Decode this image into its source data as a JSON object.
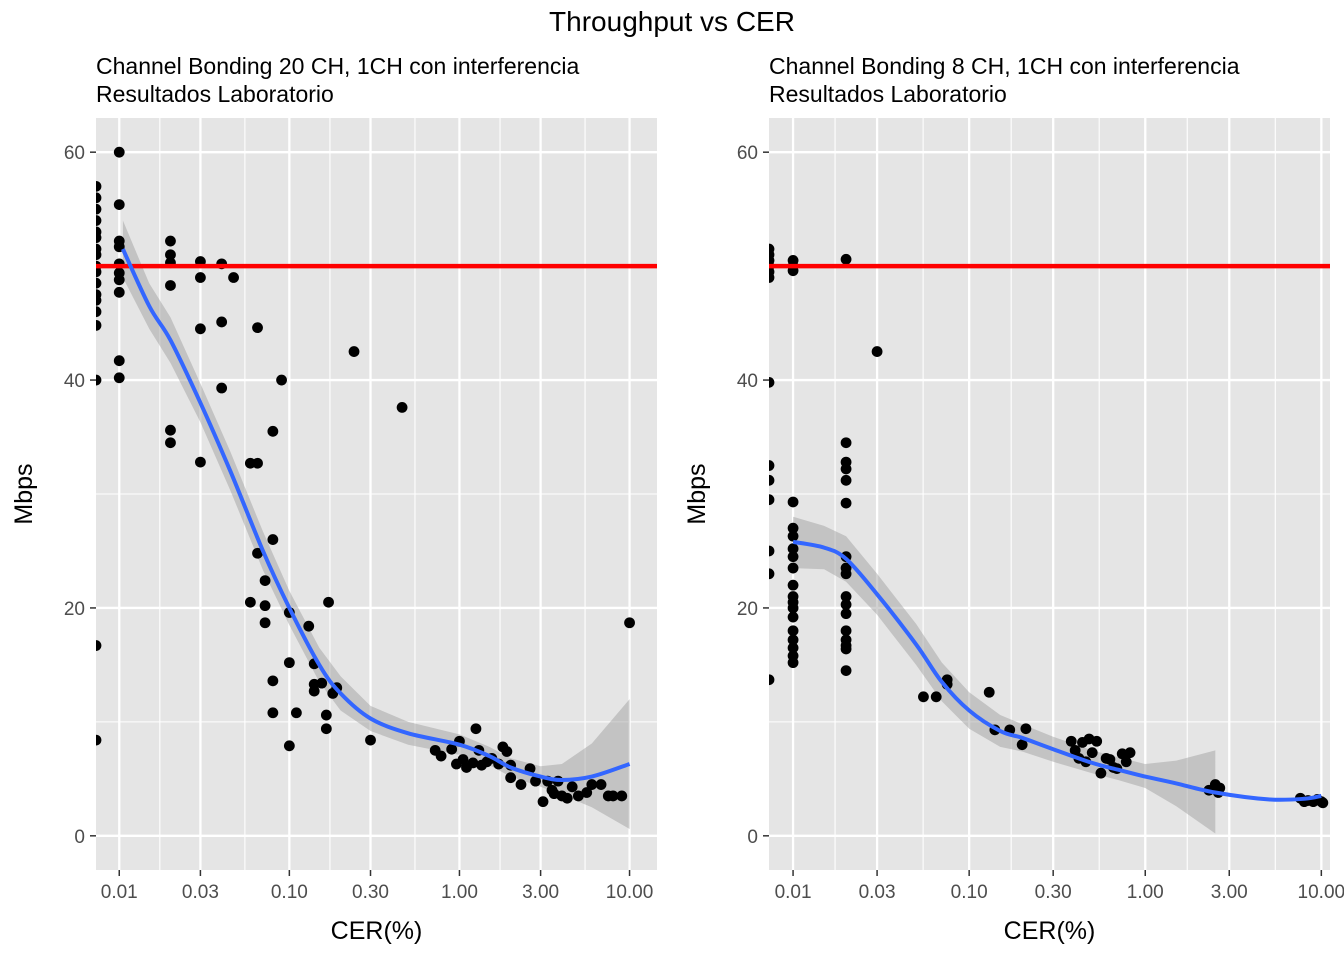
{
  "figure": {
    "title": "Throughput vs CER"
  },
  "colors": {
    "panel_bg": "#e5e5e5",
    "grid": "#ffffff",
    "points": "#000000",
    "smooth": "#3366ff",
    "ribbon": "#999999",
    "reference": "#ff0000"
  },
  "chart_data": [
    {
      "type": "scatter",
      "title": "Channel Bonding 20 CH, 1CH con interferencia",
      "subtitle": "Resultados Laboratorio",
      "xlabel": "CER(%)",
      "ylabel": "Mbps",
      "x_scale": "log10",
      "xlim": [
        0.0073,
        14.5
      ],
      "ylim": [
        -3,
        63
      ],
      "x_ticks": [
        0.01,
        0.03,
        0.1,
        0.3,
        1,
        3,
        10
      ],
      "x_tick_labels": [
        "0.01",
        "0.03",
        "0.10",
        "0.30",
        "1.00",
        "3.00",
        "10.00"
      ],
      "y_ticks": [
        0,
        20,
        40,
        60
      ],
      "y_tick_labels": [
        "0",
        "20",
        "40",
        "60"
      ],
      "reference_line": {
        "y": 50
      },
      "smooth": {
        "x": [
          0.0105,
          0.015,
          0.02,
          0.03,
          0.045,
          0.07,
          0.1,
          0.15,
          0.2,
          0.3,
          0.5,
          1,
          1.5,
          2,
          3,
          4,
          6,
          10
        ],
        "y": [
          51.5,
          46.5,
          43.5,
          38,
          32,
          25,
          20,
          15,
          12.5,
          10.3,
          9,
          8,
          7,
          6,
          5.2,
          4.9,
          5.2,
          6.3
        ],
        "lower": [
          49,
          44.5,
          41.5,
          36.3,
          30.3,
          23.3,
          18.5,
          13.5,
          11,
          9.2,
          8,
          7.1,
          6.2,
          5.2,
          4.3,
          3.6,
          2.5,
          0.6
        ],
        "upper": [
          54,
          48.5,
          45.5,
          39.7,
          33.7,
          26.7,
          21.5,
          16.5,
          14,
          11.4,
          10,
          8.9,
          7.8,
          6.8,
          6.1,
          6.3,
          8.1,
          12
        ]
      },
      "points": [
        [
          0.0073,
          57
        ],
        [
          0.0073,
          56
        ],
        [
          0.0073,
          55
        ],
        [
          0.0073,
          54
        ],
        [
          0.0073,
          53
        ],
        [
          0.0073,
          52.5
        ],
        [
          0.0073,
          51.5
        ],
        [
          0.0073,
          51
        ],
        [
          0.0073,
          50
        ],
        [
          0.0073,
          49.5
        ],
        [
          0.0073,
          48.5
        ],
        [
          0.0073,
          47.5
        ],
        [
          0.0073,
          47
        ],
        [
          0.0073,
          46
        ],
        [
          0.0073,
          44.8
        ],
        [
          0.0073,
          40
        ],
        [
          0.0073,
          16.7
        ],
        [
          0.0073,
          8.4
        ],
        [
          0.01,
          60
        ],
        [
          0.01,
          55.4
        ],
        [
          0.01,
          52.2
        ],
        [
          0.01,
          51.7
        ],
        [
          0.01,
          50.2
        ],
        [
          0.01,
          49.4
        ],
        [
          0.01,
          48.8
        ],
        [
          0.01,
          47.7
        ],
        [
          0.01,
          41.7
        ],
        [
          0.01,
          40.2
        ],
        [
          0.02,
          52.2
        ],
        [
          0.02,
          51
        ],
        [
          0.02,
          50.3
        ],
        [
          0.02,
          48.3
        ],
        [
          0.02,
          35.6
        ],
        [
          0.02,
          34.5
        ],
        [
          0.03,
          50.4
        ],
        [
          0.03,
          49
        ],
        [
          0.03,
          44.5
        ],
        [
          0.03,
          32.8
        ],
        [
          0.04,
          50.2
        ],
        [
          0.04,
          45.1
        ],
        [
          0.04,
          39.3
        ],
        [
          0.047,
          49
        ],
        [
          0.059,
          32.7
        ],
        [
          0.059,
          20.5
        ],
        [
          0.065,
          44.6
        ],
        [
          0.065,
          32.7
        ],
        [
          0.065,
          24.8
        ],
        [
          0.072,
          22.4
        ],
        [
          0.072,
          20.2
        ],
        [
          0.072,
          18.7
        ],
        [
          0.08,
          35.5
        ],
        [
          0.08,
          26
        ],
        [
          0.08,
          13.6
        ],
        [
          0.08,
          10.8
        ],
        [
          0.09,
          40
        ],
        [
          0.1,
          19.6
        ],
        [
          0.1,
          15.2
        ],
        [
          0.1,
          7.9
        ],
        [
          0.11,
          10.8
        ],
        [
          0.13,
          18.4
        ],
        [
          0.14,
          15.1
        ],
        [
          0.14,
          13.3
        ],
        [
          0.14,
          12.7
        ],
        [
          0.155,
          13.4
        ],
        [
          0.17,
          20.5
        ],
        [
          0.165,
          10.6
        ],
        [
          0.165,
          9.4
        ],
        [
          0.18,
          12.5
        ],
        [
          0.19,
          13
        ],
        [
          0.24,
          42.5
        ],
        [
          0.3,
          8.4
        ],
        [
          0.46,
          37.6
        ],
        [
          0.72,
          7.5
        ],
        [
          0.78,
          7
        ],
        [
          0.9,
          7.6
        ],
        [
          0.96,
          6.3
        ],
        [
          1.0,
          8.3
        ],
        [
          1.05,
          6.7
        ],
        [
          1.1,
          6
        ],
        [
          1.2,
          6.4
        ],
        [
          1.25,
          9.4
        ],
        [
          1.3,
          7.5
        ],
        [
          1.35,
          6.2
        ],
        [
          1.45,
          6.5
        ],
        [
          1.55,
          6.8
        ],
        [
          1.7,
          6.3
        ],
        [
          1.8,
          7.8
        ],
        [
          1.9,
          7.4
        ],
        [
          2.0,
          6.2
        ],
        [
          2.0,
          5.1
        ],
        [
          2.3,
          4.5
        ],
        [
          2.6,
          5.9
        ],
        [
          2.8,
          4.8
        ],
        [
          3.1,
          3
        ],
        [
          3.3,
          4.8
        ],
        [
          3.5,
          4
        ],
        [
          3.6,
          3.7
        ],
        [
          3.8,
          4.8
        ],
        [
          4.0,
          3.5
        ],
        [
          4.3,
          3.3
        ],
        [
          4.6,
          4.3
        ],
        [
          5.0,
          3.5
        ],
        [
          5.6,
          3.8
        ],
        [
          6.0,
          4.5
        ],
        [
          6.8,
          4.5
        ],
        [
          7.5,
          3.5
        ],
        [
          8.0,
          3.5
        ],
        [
          9.0,
          3.5
        ],
        [
          10.0,
          18.7
        ]
      ]
    },
    {
      "type": "scatter",
      "title": "Channel Bonding 8 CH, 1CH con interferencia",
      "subtitle": "Resultados Laboratorio",
      "xlabel": "CER(%)",
      "ylabel": "Mbps",
      "x_scale": "log10",
      "xlim": [
        0.0073,
        11.2
      ],
      "ylim": [
        -3,
        63
      ],
      "x_ticks": [
        0.01,
        0.03,
        0.1,
        0.3,
        1,
        3,
        10
      ],
      "x_tick_labels": [
        "0.01",
        "0.03",
        "0.10",
        "0.30",
        "1.00",
        "3.00",
        "10.00"
      ],
      "y_ticks": [
        0,
        20,
        40,
        60
      ],
      "y_tick_labels": [
        "0",
        "20",
        "40",
        "60"
      ],
      "reference_line": {
        "y": 50
      },
      "smooth": {
        "x": [
          0.01,
          0.015,
          0.02,
          0.03,
          0.05,
          0.07,
          0.1,
          0.15,
          0.2,
          0.3,
          0.5,
          0.7,
          1,
          1.5,
          2.5,
          5,
          8,
          10
        ],
        "y": [
          25.8,
          25.3,
          24.3,
          21.2,
          16.8,
          13.5,
          11,
          9.2,
          8.6,
          7.6,
          6.4,
          5.8,
          5.2,
          4.6,
          3.8,
          3.2,
          3.25,
          3.5
        ],
        "lower": [
          23.5,
          23.4,
          22.3,
          19.4,
          15,
          11.8,
          9.4,
          7.8,
          7.4,
          6.5,
          5.5,
          4.9,
          4.2,
          2.6,
          0.2,
          null,
          null,
          null
        ],
        "upper": [
          28,
          27.2,
          26.3,
          23,
          18.6,
          15.2,
          12.6,
          10.6,
          9.8,
          8.7,
          7.5,
          6.9,
          6.3,
          6.6,
          7.5,
          null,
          null,
          null
        ]
      },
      "points": [
        [
          0.0073,
          51.5
        ],
        [
          0.0073,
          51
        ],
        [
          0.0073,
          50.5
        ],
        [
          0.0073,
          50
        ],
        [
          0.0073,
          49.5
        ],
        [
          0.0073,
          49
        ],
        [
          0.0073,
          39.8
        ],
        [
          0.0073,
          32.5
        ],
        [
          0.0073,
          31.2
        ],
        [
          0.0073,
          29.5
        ],
        [
          0.0073,
          25
        ],
        [
          0.0073,
          23
        ],
        [
          0.0073,
          13.7
        ],
        [
          0.01,
          50.5
        ],
        [
          0.01,
          50
        ],
        [
          0.01,
          49.6
        ],
        [
          0.01,
          29.3
        ],
        [
          0.01,
          27
        ],
        [
          0.01,
          26.3
        ],
        [
          0.01,
          25.2
        ],
        [
          0.01,
          24.5
        ],
        [
          0.01,
          23.5
        ],
        [
          0.01,
          22
        ],
        [
          0.01,
          21
        ],
        [
          0.01,
          20.5
        ],
        [
          0.01,
          20
        ],
        [
          0.01,
          19.2
        ],
        [
          0.01,
          18
        ],
        [
          0.01,
          17.2
        ],
        [
          0.01,
          16.5
        ],
        [
          0.01,
          15.8
        ],
        [
          0.01,
          15.2
        ],
        [
          0.02,
          50.6
        ],
        [
          0.02,
          34.5
        ],
        [
          0.02,
          32.8
        ],
        [
          0.02,
          32.2
        ],
        [
          0.02,
          31.2
        ],
        [
          0.02,
          29.2
        ],
        [
          0.02,
          24.5
        ],
        [
          0.02,
          23.5
        ],
        [
          0.02,
          23
        ],
        [
          0.02,
          21
        ],
        [
          0.02,
          20.3
        ],
        [
          0.02,
          19.5
        ],
        [
          0.02,
          18
        ],
        [
          0.02,
          17.2
        ],
        [
          0.02,
          16.7
        ],
        [
          0.02,
          16.4
        ],
        [
          0.02,
          14.5
        ],
        [
          0.03,
          42.5
        ],
        [
          0.055,
          12.2
        ],
        [
          0.065,
          12.2
        ],
        [
          0.075,
          13.3
        ],
        [
          0.075,
          13.7
        ],
        [
          0.13,
          12.6
        ],
        [
          0.14,
          9.3
        ],
        [
          0.17,
          9.3
        ],
        [
          0.2,
          8
        ],
        [
          0.21,
          9.4
        ],
        [
          0.38,
          8.3
        ],
        [
          0.4,
          7.5
        ],
        [
          0.42,
          6.8
        ],
        [
          0.44,
          8.2
        ],
        [
          0.46,
          6.5
        ],
        [
          0.48,
          8.5
        ],
        [
          0.5,
          7.3
        ],
        [
          0.53,
          8.3
        ],
        [
          0.56,
          5.5
        ],
        [
          0.6,
          6.8
        ],
        [
          0.63,
          6.7
        ],
        [
          0.66,
          6
        ],
        [
          0.69,
          5.9
        ],
        [
          0.74,
          7.2
        ],
        [
          0.78,
          6.5
        ],
        [
          0.82,
          7.3
        ],
        [
          2.3,
          4
        ],
        [
          2.5,
          4.5
        ],
        [
          2.6,
          3.8
        ],
        [
          2.65,
          4.2
        ],
        [
          7.6,
          3.3
        ],
        [
          8.0,
          3
        ],
        [
          8.4,
          3.1
        ],
        [
          9.0,
          3
        ],
        [
          9.5,
          3.2
        ],
        [
          10.0,
          3
        ],
        [
          10.2,
          2.9
        ]
      ]
    }
  ]
}
